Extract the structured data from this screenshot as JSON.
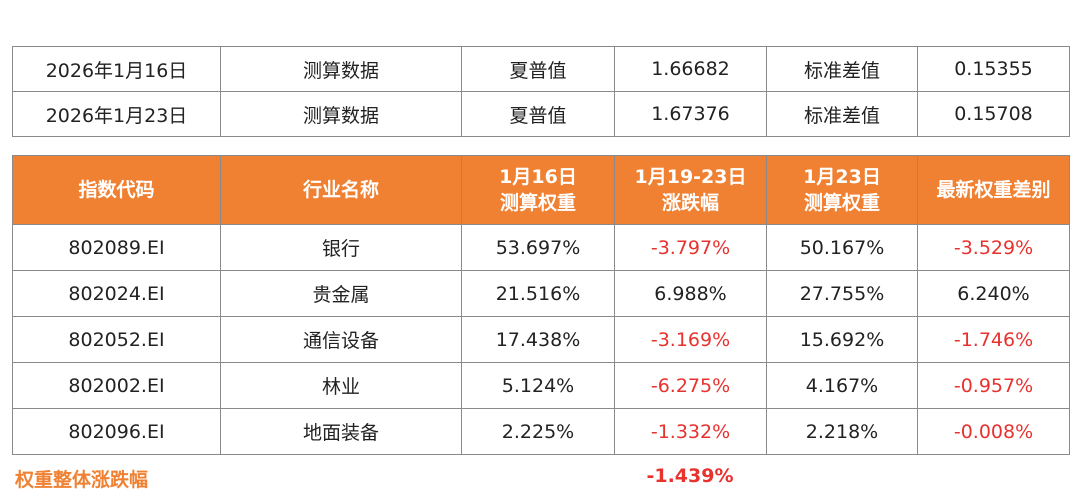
{
  "summary_rows": [
    {
      "date": "2026年1月16日",
      "type": "测算数据",
      "metric1_label": "夏普值",
      "metric1_value": "1.66682",
      "metric2_label": "标准差值",
      "metric2_value": "0.15355"
    },
    {
      "date": "2026年1月23日",
      "type": "测算数据",
      "metric1_label": "夏普值",
      "metric1_value": "1.67376",
      "metric2_label": "标准差值",
      "metric2_value": "0.15708"
    }
  ],
  "weights_table": {
    "headers": [
      {
        "line1": "指数代码",
        "line2": ""
      },
      {
        "line1": "行业名称",
        "line2": ""
      },
      {
        "line1": "1月16日",
        "line2": "测算权重"
      },
      {
        "line1": "1月19-23日",
        "line2": "涨跌幅"
      },
      {
        "line1": "1月23日",
        "line2": "测算权重"
      },
      {
        "line1": "最新权重差别",
        "line2": ""
      }
    ],
    "rows": [
      {
        "code": "802089.EI",
        "industry": "银行",
        "weight_0116": "53.697%",
        "change": "-3.797%",
        "weight_0123": "50.167%",
        "diff": "-3.529%"
      },
      {
        "code": "802024.EI",
        "industry": "贵金属",
        "weight_0116": "21.516%",
        "change": "6.988%",
        "weight_0123": "27.755%",
        "diff": "6.240%"
      },
      {
        "code": "802052.EI",
        "industry": "通信设备",
        "weight_0116": "17.438%",
        "change": "-3.169%",
        "weight_0123": "15.692%",
        "diff": "-1.746%"
      },
      {
        "code": "802002.EI",
        "industry": "林业",
        "weight_0116": "5.124%",
        "change": "-6.275%",
        "weight_0123": "4.167%",
        "diff": "-0.957%"
      },
      {
        "code": "802096.EI",
        "industry": "地面装备",
        "weight_0116": "2.225%",
        "change": "-1.332%",
        "weight_0123": "2.218%",
        "diff": "-0.008%"
      }
    ]
  },
  "footer": {
    "label": "权重整体涨跌幅",
    "value": "-1.439%"
  },
  "colors": {
    "header_bg": "#f08132",
    "negative": "#e8322e",
    "border": "#8a8a8a"
  }
}
